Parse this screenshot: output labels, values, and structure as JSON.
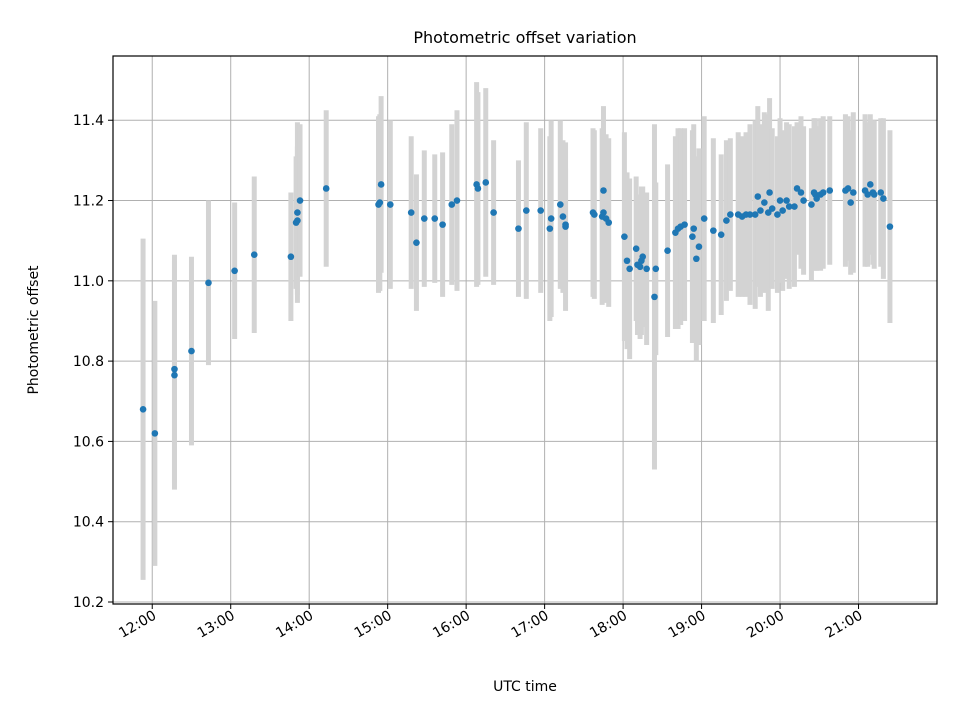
{
  "chart_data": {
    "type": "scatter",
    "title": "Photometric offset variation",
    "xlabel": "UTC time",
    "ylabel": "Photometric offset",
    "xlim": [
      "11:30",
      "22:00"
    ],
    "ylim": [
      10.195,
      11.56
    ],
    "x_ticks": [
      "12:00",
      "13:00",
      "14:00",
      "15:00",
      "16:00",
      "17:00",
      "18:00",
      "19:00",
      "20:00",
      "21:00"
    ],
    "y_ticks": [
      "10.2",
      "10.4",
      "10.6",
      "10.8",
      "11.0",
      "11.2",
      "11.4"
    ],
    "grid": true,
    "colors": {
      "point": "#1f77b4",
      "errorbar": "#d3d3d3",
      "grid": "#b0b0b0"
    },
    "series": [
      {
        "x": [
          "11:53",
          "12:02",
          "12:17",
          "12:17",
          "12:30",
          "12:43",
          "13:03",
          "13:18",
          "13:46",
          "13:50",
          "13:51",
          "13:51",
          "13:53",
          "14:13",
          "14:53",
          "14:54",
          "14:55",
          "15:02",
          "15:18",
          "15:22",
          "15:28",
          "15:36",
          "15:42",
          "15:49",
          "15:53",
          "16:08",
          "16:09",
          "16:15",
          "16:21",
          "16:40",
          "16:46",
          "16:57",
          "17:04",
          "17:05",
          "17:12",
          "17:14",
          "17:16",
          "17:16",
          "17:37",
          "17:38",
          "17:44",
          "17:45",
          "17:45",
          "17:47",
          "17:49",
          "18:01",
          "18:03",
          "18:05",
          "18:10",
          "18:11",
          "18:13",
          "18:14",
          "18:15",
          "18:18",
          "18:24",
          "18:25",
          "18:34",
          "18:40",
          "18:42",
          "18:44",
          "18:47",
          "18:53",
          "18:54",
          "18:56",
          "18:58",
          "19:02",
          "19:09",
          "19:15",
          "19:19",
          "19:22",
          "19:28",
          "19:31",
          "19:34",
          "19:37",
          "19:41",
          "19:43",
          "19:45",
          "19:48",
          "19:51",
          "19:52",
          "19:54",
          "19:58",
          "20:00",
          "20:02",
          "20:05",
          "20:07",
          "20:11",
          "20:13",
          "20:16",
          "20:18",
          "20:24",
          "20:26",
          "20:27",
          "20:28",
          "20:31",
          "20:33",
          "20:38",
          "20:50",
          "20:52",
          "20:54",
          "20:56",
          "21:05",
          "21:07",
          "21:09",
          "21:11",
          "21:12",
          "21:17",
          "21:19",
          "21:24"
        ],
        "y": [
          10.68,
          10.62,
          10.78,
          10.765,
          10.825,
          10.995,
          11.025,
          11.065,
          11.06,
          11.145,
          11.15,
          11.17,
          11.2,
          11.23,
          11.19,
          11.195,
          11.24,
          11.19,
          11.17,
          11.095,
          11.155,
          11.155,
          11.14,
          11.19,
          11.2,
          11.24,
          11.23,
          11.245,
          11.17,
          11.13,
          11.175,
          11.175,
          11.13,
          11.155,
          11.19,
          11.16,
          11.135,
          11.14,
          11.17,
          11.165,
          11.16,
          11.225,
          11.17,
          11.155,
          11.145,
          11.11,
          11.05,
          11.03,
          11.08,
          11.04,
          11.035,
          11.05,
          11.06,
          11.03,
          10.96,
          11.03,
          11.075,
          11.12,
          11.13,
          11.135,
          11.14,
          11.11,
          11.13,
          11.055,
          11.085,
          11.155,
          11.125,
          11.115,
          11.15,
          11.165,
          11.165,
          11.16,
          11.165,
          11.165,
          11.165,
          11.21,
          11.175,
          11.195,
          11.17,
          11.22,
          11.18,
          11.165,
          11.2,
          11.175,
          11.2,
          11.185,
          11.185,
          11.23,
          11.22,
          11.2,
          11.19,
          11.22,
          11.215,
          11.205,
          11.215,
          11.22,
          11.225,
          11.225,
          11.23,
          11.195,
          11.22,
          11.225,
          11.215,
          11.24,
          11.22,
          11.215,
          11.22,
          11.205,
          11.135
        ],
        "err": [
          0.425,
          0.33,
          0.285,
          0.285,
          0.235,
          0.205,
          0.17,
          0.195,
          0.16,
          0.165,
          0.185,
          0.225,
          0.19,
          0.195,
          0.22,
          0.22,
          0.22,
          0.21,
          0.19,
          0.17,
          0.17,
          0.16,
          0.18,
          0.2,
          0.225,
          0.255,
          0.24,
          0.235,
          0.18,
          0.17,
          0.22,
          0.205,
          0.23,
          0.245,
          0.21,
          0.19,
          0.21,
          0.14,
          0.21,
          0.21,
          0.22,
          0.21,
          0.205,
          0.21,
          0.21,
          0.26,
          0.22,
          0.225,
          0.18,
          0.175,
          0.18,
          0.185,
          0.175,
          0.19,
          0.43,
          0.215,
          0.215,
          0.24,
          0.25,
          0.245,
          0.24,
          0.265,
          0.26,
          0.255,
          0.245,
          0.255,
          0.23,
          0.2,
          0.2,
          0.19,
          0.205,
          0.2,
          0.205,
          0.225,
          0.235,
          0.225,
          0.215,
          0.225,
          0.245,
          0.235,
          0.2,
          0.195,
          0.205,
          0.2,
          0.195,
          0.205,
          0.2,
          0.165,
          0.19,
          0.185,
          0.19,
          0.185,
          0.19,
          0.18,
          0.19,
          0.19,
          0.185,
          0.19,
          0.18,
          0.18,
          0.2,
          0.19,
          0.18,
          0.175,
          0.18,
          0.185,
          0.185,
          0.2,
          0.24
        ]
      }
    ]
  }
}
